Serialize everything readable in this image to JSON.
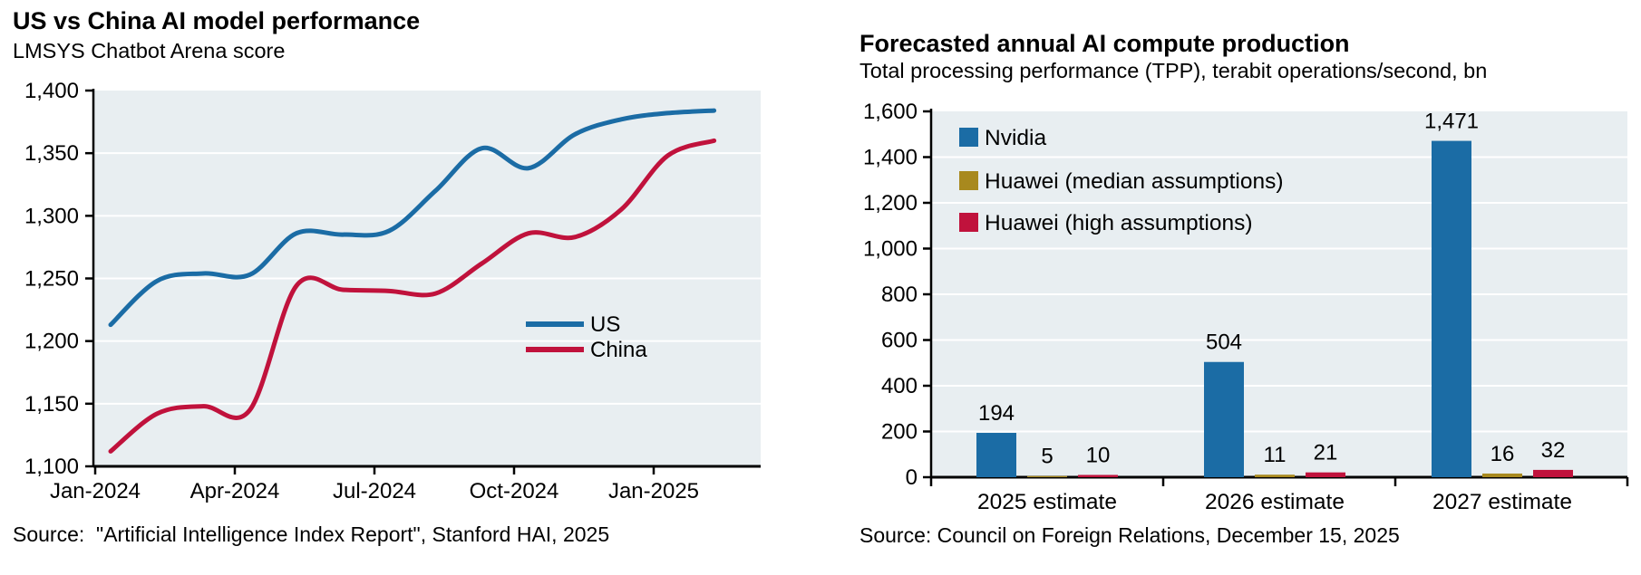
{
  "palette": {
    "blue": "#1b6ca5",
    "crimson": "#c0123c",
    "olive": "#a8891e",
    "plot_bg": "#e8eef1",
    "grid": "#ffffff",
    "axis": "#000000"
  },
  "chart_data": [
    {
      "type": "line",
      "title": "US vs China AI model performance",
      "subtitle": "LMSYS Chatbot Arena score",
      "source": "Source:  \"Artificial Intelligence Index Report\", Stanford HAI, 2025",
      "x": [
        "Jan-2024",
        "Feb-2024",
        "Mar-2024",
        "Apr-2024",
        "May-2024",
        "Jun-2024",
        "Jul-2024",
        "Aug-2024",
        "Sep-2024",
        "Oct-2024",
        "Nov-2024",
        "Dec-2024",
        "Jan-2025",
        "Feb-2025"
      ],
      "x_tick_labels": [
        "Jan-2024",
        "Apr-2024",
        "Jul-2024",
        "Oct-2024",
        "Jan-2025"
      ],
      "ylim": [
        1100,
        1400
      ],
      "ytick_step": 50,
      "grid": true,
      "legend_position": "inside-right-middle",
      "series": [
        {
          "name": "US",
          "color": "#1b6ca5",
          "values": [
            1213,
            1248,
            1254,
            1253,
            1286,
            1285,
            1288,
            1320,
            1354,
            1338,
            1365,
            1377,
            1382,
            1384
          ]
        },
        {
          "name": "China",
          "color": "#c0123c",
          "values": [
            1112,
            1142,
            1148,
            1145,
            1244,
            1241,
            1240,
            1238,
            1262,
            1286,
            1283,
            1305,
            1348,
            1360
          ]
        }
      ]
    },
    {
      "type": "bar",
      "title": "Forecasted annual AI compute production",
      "subtitle": "Total processing performance (TPP), terabit operations/second, bn",
      "source": "Source: Council on Foreign Relations, December 15, 2025",
      "categories": [
        "2025 estimate",
        "2026 estimate",
        "2027 estimate"
      ],
      "ylim": [
        0,
        1600
      ],
      "ytick_step": 200,
      "grid": true,
      "legend_position": "inside-top-left",
      "series": [
        {
          "name": "Nvidia",
          "color": "#1b6ca5",
          "values": [
            194,
            504,
            1471
          ]
        },
        {
          "name": "Huawei (median assumptions)",
          "color": "#a8891e",
          "values": [
            5,
            11,
            16
          ]
        },
        {
          "name": "Huawei (high assumptions)",
          "color": "#c0123c",
          "values": [
            10,
            21,
            32
          ]
        }
      ]
    }
  ]
}
